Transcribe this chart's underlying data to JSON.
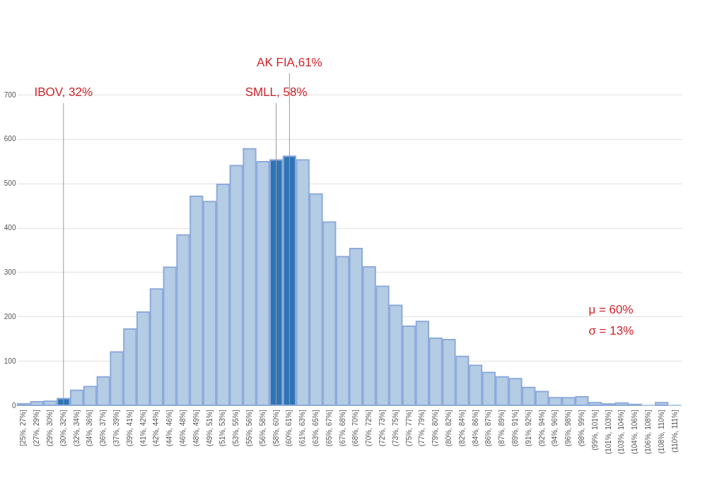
{
  "chart_data": {
    "type": "bar",
    "categories": [
      "[25%, 27%]",
      "(27%, 29%]",
      "(29%, 30%]",
      "(30%, 32%]",
      "(32%, 34%]",
      "(34%, 36%]",
      "(36%, 37%]",
      "(37%, 39%]",
      "(39%, 41%]",
      "(41%, 42%]",
      "(42%, 44%]",
      "(44%, 46%]",
      "(46%, 48%]",
      "(48%, 49%]",
      "(49%, 51%]",
      "(51%, 53%]",
      "(53%, 55%]",
      "(55%, 56%]",
      "(56%, 58%]",
      "(58%, 60%]",
      "(60%, 61%]",
      "(61%, 63%]",
      "(63%, 65%]",
      "(65%, 67%]",
      "(67%, 68%]",
      "(68%, 70%]",
      "(70%, 72%]",
      "(72%, 73%]",
      "(73%, 75%]",
      "(75%, 77%]",
      "(77%, 79%]",
      "(79%, 80%]",
      "(80%, 82%]",
      "(82%, 84%]",
      "(84%, 86%]",
      "(86%, 87%]",
      "(87%, 89%]",
      "(89%, 91%]",
      "(91%, 92%]",
      "(92%, 94%]",
      "(94%, 96%]",
      "(96%, 98%]",
      "(98%, 99%]",
      "(99%, 101%]",
      "(101%, 103%]",
      "(103%, 104%]",
      "(104%, 106%]",
      "(106%, 108%]",
      "(108%, 110%]",
      "(110%, 111%]"
    ],
    "values": [
      3,
      8,
      9,
      15,
      34,
      42,
      64,
      120,
      172,
      210,
      262,
      311,
      384,
      471,
      459,
      498,
      540,
      578,
      549,
      553,
      561,
      553,
      476,
      413,
      335,
      353,
      312,
      268,
      225,
      178,
      189,
      151,
      148,
      110,
      90,
      74,
      64,
      60,
      40,
      31,
      17,
      17,
      19,
      6,
      3,
      5,
      2,
      0,
      6,
      0
    ],
    "colors": [
      "#b4cce4",
      "#b4cce4",
      "#b4cce4",
      "#2e75b6",
      "#b4cce4",
      "#b4cce4",
      "#b4cce4",
      "#b4cce4",
      "#b4cce4",
      "#b4cce4",
      "#b4cce4",
      "#b4cce4",
      "#b4cce4",
      "#b4cce4",
      "#b4cce4",
      "#b4cce4",
      "#b4cce4",
      "#b4cce4",
      "#b4cce4",
      "#2e75b6",
      "#2e75b6",
      "#b4cce4",
      "#b4cce4",
      "#b4cce4",
      "#b4cce4",
      "#b4cce4",
      "#b4cce4",
      "#b4cce4",
      "#b4cce4",
      "#b4cce4",
      "#b4cce4",
      "#b4cce4",
      "#b4cce4",
      "#b4cce4",
      "#b4cce4",
      "#b4cce4",
      "#b4cce4",
      "#b4cce4",
      "#b4cce4",
      "#b4cce4",
      "#b4cce4",
      "#b4cce4",
      "#b4cce4",
      "#b4cce4",
      "#b4cce4",
      "#b4cce4",
      "#b4cce4",
      "#b4cce4",
      "#b4cce4",
      "#b4cce4"
    ],
    "ylim": [
      0,
      700
    ],
    "yticks": [
      0,
      100,
      200,
      300,
      400,
      500,
      600,
      700
    ],
    "grid": "y",
    "ref_lines": [
      {
        "axis": "x",
        "value": "(30%, 32%]",
        "label": "IBOV, 32%",
        "color": "#999999"
      },
      {
        "axis": "x",
        "value": "(58%, 60%]",
        "label": "SMLL, 58%",
        "color": "#999999"
      },
      {
        "axis": "x",
        "value": "(60%, 61%]",
        "label": "AK FIA,61%",
        "color": "#999999"
      }
    ],
    "annotations": [
      "μ = 60%",
      "σ = 13%"
    ]
  }
}
